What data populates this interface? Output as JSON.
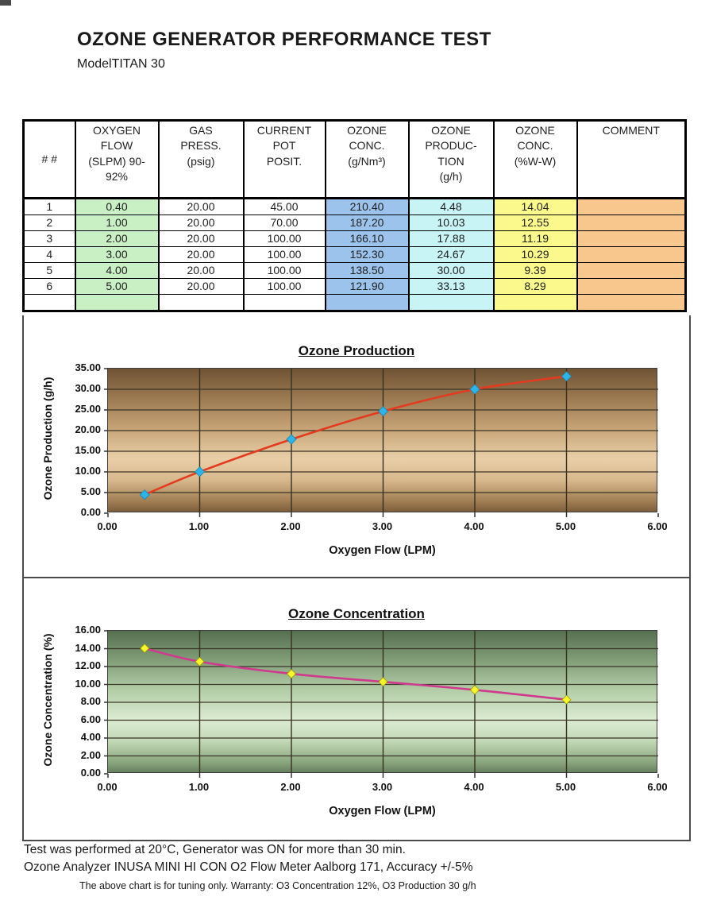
{
  "page": {
    "title": "OZONE GENERATOR PERFORMANCE TEST",
    "model": "ModelTITAN 30"
  },
  "table": {
    "headers": [
      "# #",
      "OXYGEN\nFLOW\n(SLPM) 90-\n92%",
      "GAS\nPRESS.\n(psig)",
      "CURRENT\nPOT\nPOSIT.",
      "OZONE\nCONC.\n(g/Nm³)",
      "OZONE\nPRODUC-\nTION\n(g/h)",
      "OZONE\nCONC.\n(%W-W)",
      "COMMENT"
    ],
    "rows": [
      [
        "1",
        "0.40",
        "20.00",
        "45.00",
        "210.40",
        "4.48",
        "14.04",
        ""
      ],
      [
        "2",
        "1.00",
        "20.00",
        "70.00",
        "187.20",
        "10.03",
        "12.55",
        ""
      ],
      [
        "3",
        "2.00",
        "20.00",
        "100.00",
        "166.10",
        "17.88",
        "11.19",
        ""
      ],
      [
        "4",
        "3.00",
        "20.00",
        "100.00",
        "152.30",
        "24.67",
        "10.29",
        ""
      ],
      [
        "5",
        "4.00",
        "20.00",
        "100.00",
        "138.50",
        "30.00",
        "9.39",
        ""
      ],
      [
        "6",
        "5.00",
        "20.00",
        "100.00",
        "121.90",
        "33.13",
        "8.29",
        ""
      ],
      [
        "",
        "",
        "",
        "",
        "",
        "",
        "",
        ""
      ]
    ],
    "column_colors": [
      "#ffffff",
      "#c9efc4",
      "#ffffff",
      "#ffffff",
      "#9cc3ec",
      "#c8f4f6",
      "#fcf98c",
      "#f8c78e"
    ]
  },
  "chart_data": [
    {
      "type": "line",
      "title": "Ozone Production",
      "xlabel": "Oxygen Flow (LPM)",
      "ylabel": "Ozone Production (g/h)",
      "x": [
        0.4,
        1.0,
        2.0,
        3.0,
        4.0,
        5.0
      ],
      "y": [
        4.48,
        10.03,
        17.88,
        24.67,
        30.0,
        33.13
      ],
      "xlim": [
        0,
        6
      ],
      "xstep": 1,
      "ylim": [
        0,
        35
      ],
      "ystep": 5,
      "grid": true,
      "legend": "none",
      "line_color": "#e23b20",
      "marker_color": "#2db5e9",
      "marker_edge": "#1787b5"
    },
    {
      "type": "line",
      "title": "Ozone Concentration",
      "xlabel": "Oxygen Flow (LPM)",
      "ylabel": "Ozone Concentration (%)",
      "x": [
        0.4,
        1.0,
        2.0,
        3.0,
        4.0,
        5.0
      ],
      "y": [
        14.04,
        12.55,
        11.19,
        10.29,
        9.39,
        8.29
      ],
      "xlim": [
        0,
        6
      ],
      "xstep": 1,
      "ylim": [
        0,
        16
      ],
      "ystep": 2,
      "grid": true,
      "legend": "none",
      "line_color": "#cf3a8e",
      "marker_color": "#f7f72b",
      "marker_edge": "#9b9b00"
    }
  ],
  "footer": {
    "line1": "Test was performed at 20°C, Generator was ON for more than 30 min.",
    "line2": "Ozone Analyzer INUSA MINI HI CON O2 Flow Meter Aalborg 171, Accuracy +/-5%",
    "line3": "The above chart is for tuning only. Warranty: O3 Concentration 12%, O3 Production 30 g/h"
  }
}
